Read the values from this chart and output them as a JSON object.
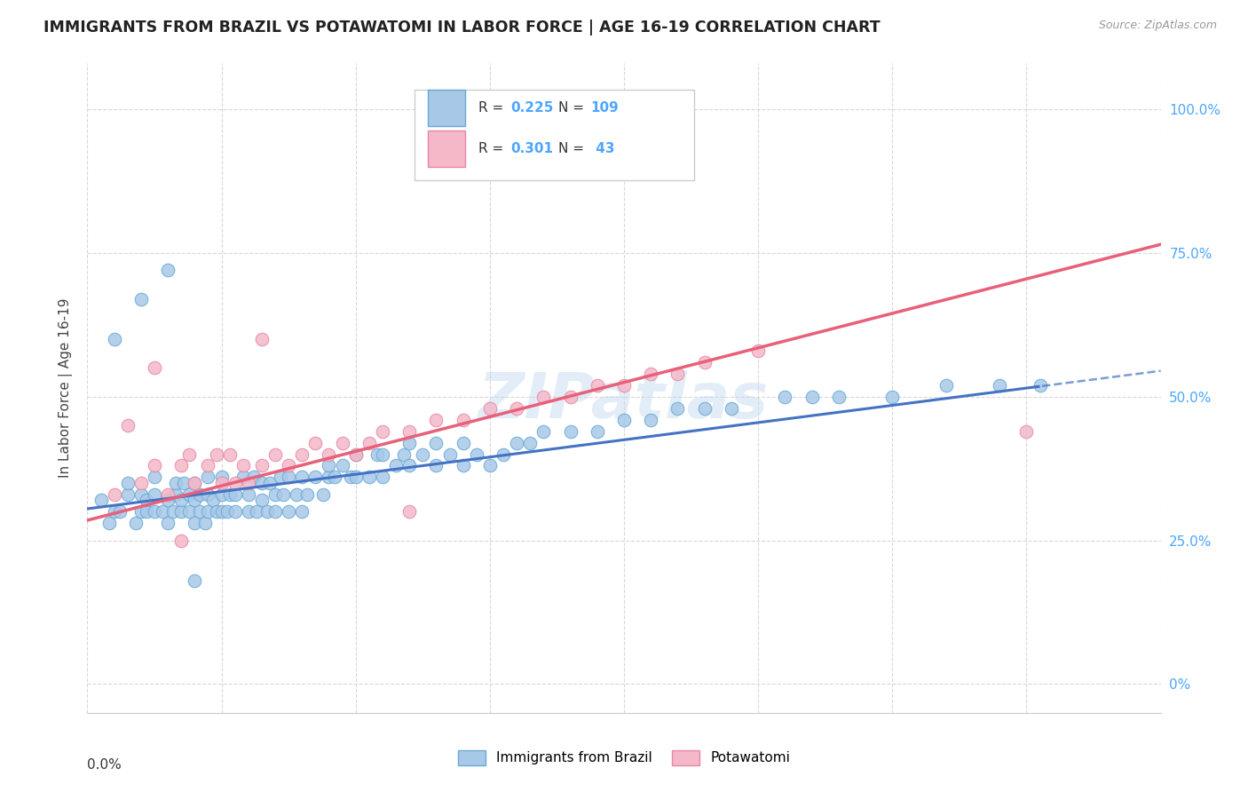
{
  "title": "IMMIGRANTS FROM BRAZIL VS POTAWATOMI IN LABOR FORCE | AGE 16-19 CORRELATION CHART",
  "source": "Source: ZipAtlas.com",
  "ylabel": "In Labor Force | Age 16-19",
  "xlim": [
    0.0,
    0.4
  ],
  "ylim": [
    -0.05,
    1.08
  ],
  "ytick_vals": [
    0.0,
    0.25,
    0.5,
    0.75,
    1.0
  ],
  "ytick_labels_right": [
    "0%",
    "25.0%",
    "50.0%",
    "75.0%",
    "100.0%"
  ],
  "brazil_color": "#a8c8e8",
  "brazil_edge": "#6aaad4",
  "potawatomi_color": "#f4b8c8",
  "potawatomi_edge": "#e888a8",
  "brazil_line_color": "#4472c4",
  "potawatomi_line_color": "#e8607a",
  "brazil_R": 0.225,
  "brazil_N": 109,
  "potawatomi_R": 0.301,
  "potawatomi_N": 43,
  "watermark": "ZIPatlas",
  "background_color": "#ffffff",
  "grid_color": "#d8d8d8",
  "right_tick_color": "#4da6ff",
  "brazil_line_intercept": 0.305,
  "brazil_line_slope": 0.6,
  "potawatomi_line_intercept": 0.285,
  "potawatomi_line_slope": 1.2,
  "brazil_scatter_x": [
    0.005,
    0.008,
    0.01,
    0.012,
    0.015,
    0.015,
    0.018,
    0.02,
    0.02,
    0.022,
    0.022,
    0.025,
    0.025,
    0.025,
    0.028,
    0.03,
    0.03,
    0.032,
    0.033,
    0.033,
    0.035,
    0.035,
    0.036,
    0.038,
    0.038,
    0.04,
    0.04,
    0.04,
    0.042,
    0.042,
    0.044,
    0.045,
    0.045,
    0.045,
    0.047,
    0.048,
    0.05,
    0.05,
    0.05,
    0.052,
    0.053,
    0.055,
    0.055,
    0.058,
    0.06,
    0.06,
    0.062,
    0.063,
    0.065,
    0.065,
    0.067,
    0.068,
    0.07,
    0.07,
    0.072,
    0.073,
    0.075,
    0.075,
    0.078,
    0.08,
    0.08,
    0.082,
    0.085,
    0.088,
    0.09,
    0.09,
    0.092,
    0.095,
    0.098,
    0.1,
    0.1,
    0.105,
    0.108,
    0.11,
    0.11,
    0.115,
    0.118,
    0.12,
    0.12,
    0.125,
    0.13,
    0.13,
    0.135,
    0.14,
    0.14,
    0.145,
    0.15,
    0.155,
    0.16,
    0.165,
    0.17,
    0.18,
    0.19,
    0.2,
    0.21,
    0.22,
    0.23,
    0.24,
    0.26,
    0.27,
    0.28,
    0.3,
    0.32,
    0.34,
    0.355,
    0.01,
    0.02,
    0.03,
    0.04
  ],
  "brazil_scatter_y": [
    0.32,
    0.28,
    0.3,
    0.3,
    0.33,
    0.35,
    0.28,
    0.3,
    0.33,
    0.3,
    0.32,
    0.3,
    0.33,
    0.36,
    0.3,
    0.28,
    0.32,
    0.3,
    0.33,
    0.35,
    0.3,
    0.32,
    0.35,
    0.3,
    0.33,
    0.28,
    0.32,
    0.35,
    0.3,
    0.33,
    0.28,
    0.3,
    0.33,
    0.36,
    0.32,
    0.3,
    0.3,
    0.33,
    0.36,
    0.3,
    0.33,
    0.3,
    0.33,
    0.36,
    0.3,
    0.33,
    0.36,
    0.3,
    0.32,
    0.35,
    0.3,
    0.35,
    0.3,
    0.33,
    0.36,
    0.33,
    0.3,
    0.36,
    0.33,
    0.3,
    0.36,
    0.33,
    0.36,
    0.33,
    0.36,
    0.38,
    0.36,
    0.38,
    0.36,
    0.36,
    0.4,
    0.36,
    0.4,
    0.36,
    0.4,
    0.38,
    0.4,
    0.38,
    0.42,
    0.4,
    0.38,
    0.42,
    0.4,
    0.38,
    0.42,
    0.4,
    0.38,
    0.4,
    0.42,
    0.42,
    0.44,
    0.44,
    0.44,
    0.46,
    0.46,
    0.48,
    0.48,
    0.48,
    0.5,
    0.5,
    0.5,
    0.5,
    0.52,
    0.52,
    0.52,
    0.6,
    0.67,
    0.72,
    0.18
  ],
  "potawatomi_scatter_x": [
    0.01,
    0.015,
    0.02,
    0.025,
    0.03,
    0.035,
    0.038,
    0.04,
    0.045,
    0.048,
    0.05,
    0.053,
    0.055,
    0.058,
    0.06,
    0.065,
    0.07,
    0.075,
    0.08,
    0.085,
    0.09,
    0.095,
    0.1,
    0.105,
    0.11,
    0.12,
    0.13,
    0.14,
    0.15,
    0.16,
    0.17,
    0.18,
    0.19,
    0.2,
    0.21,
    0.22,
    0.23,
    0.25,
    0.35,
    0.025,
    0.035,
    0.065,
    0.12
  ],
  "potawatomi_scatter_y": [
    0.33,
    0.45,
    0.35,
    0.38,
    0.33,
    0.38,
    0.4,
    0.35,
    0.38,
    0.4,
    0.35,
    0.4,
    0.35,
    0.38,
    0.35,
    0.38,
    0.4,
    0.38,
    0.4,
    0.42,
    0.4,
    0.42,
    0.4,
    0.42,
    0.44,
    0.44,
    0.46,
    0.46,
    0.48,
    0.48,
    0.5,
    0.5,
    0.52,
    0.52,
    0.54,
    0.54,
    0.56,
    0.58,
    0.44,
    0.55,
    0.25,
    0.6,
    0.3
  ]
}
